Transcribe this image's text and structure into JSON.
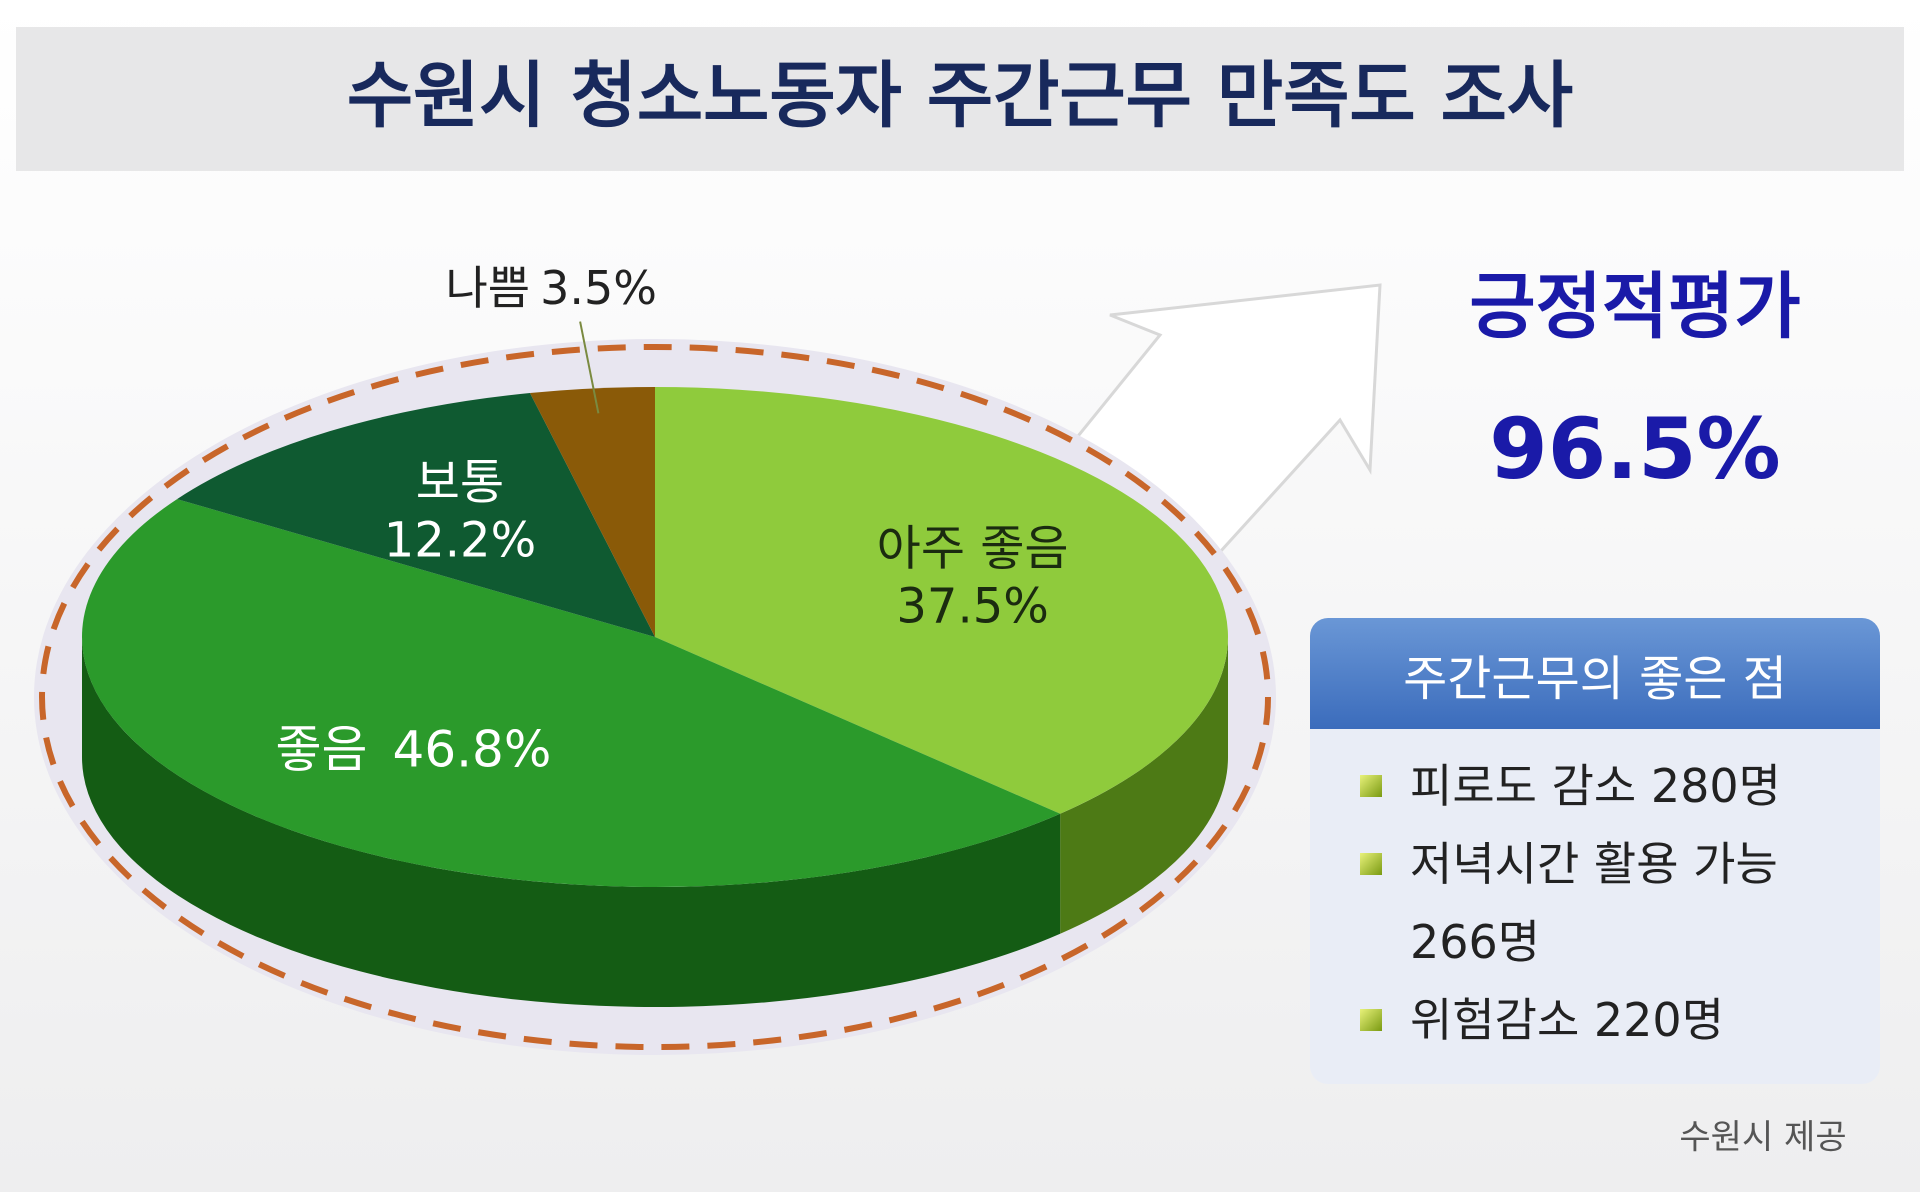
{
  "chart_data": {
    "type": "pie",
    "title": "수원시 청소노동자 주간근무 만족도 조사",
    "categories": [
      "아주 좋음",
      "좋음",
      "보통",
      "나쁨"
    ],
    "values": [
      37.5,
      46.8,
      12.2,
      3.5
    ],
    "value_labels": [
      "37.5%",
      "46.8%",
      "12.2%",
      "3.5%"
    ],
    "colors": [
      "#8fcb3c",
      "#2b9a2b",
      "#0f5a31",
      "#8a5a08"
    ],
    "side_colors": [
      "#4d7a15",
      "#145c14",
      "#07331b",
      "#4d3104"
    ],
    "annotation": {
      "label": "긍정적평가",
      "value": "96.5%"
    },
    "box": {
      "title": "주간근무의 좋은 점",
      "items": [
        "피로도 감소 280명",
        "저녁시간 활용 가능 266명",
        "위험감소 220명"
      ]
    },
    "source": "수원시 제공"
  }
}
